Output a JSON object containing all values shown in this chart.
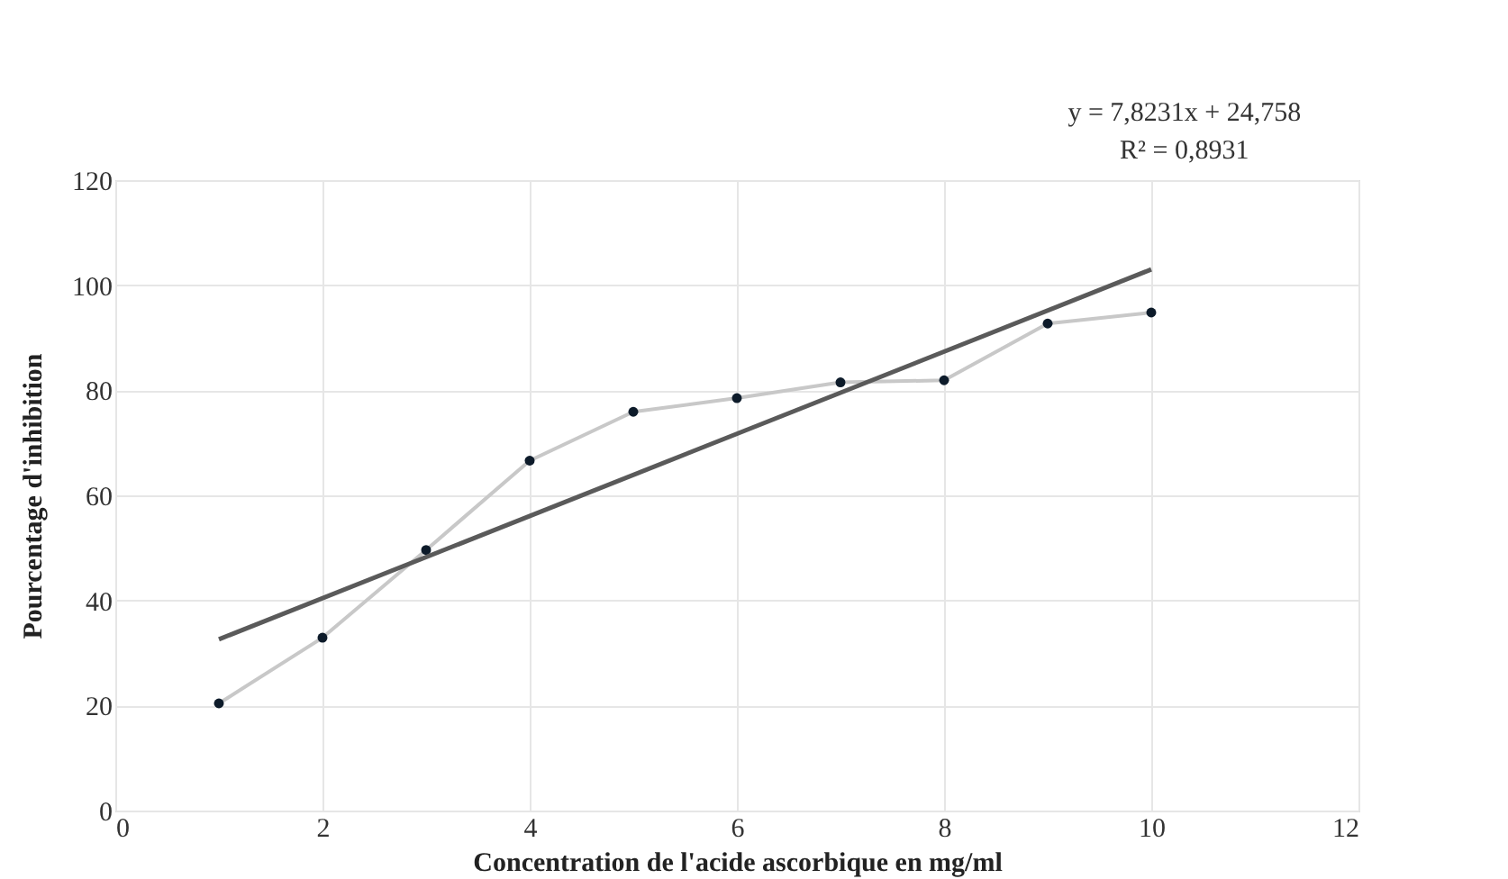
{
  "chart_data": {
    "type": "line",
    "xlabel": "Concentration de l'acide ascorbique en mg/ml",
    "ylabel": "Pourcentage  d'inhibition",
    "x": [
      1,
      2,
      3,
      4,
      5,
      6,
      7,
      8,
      9,
      10
    ],
    "series": [
      {
        "color": "#c8c8c8",
        "values": [
          20.4,
          32.9,
          49.6,
          66.6,
          75.9,
          78.5,
          81.5,
          81.9,
          92.7,
          94.8
        ],
        "marker": "circle"
      },
      {
        "type": "line",
        "color": "#5a5a5a",
        "x": [
          1,
          10
        ],
        "values": [
          32.6,
          103.0
        ],
        "marker": "none"
      }
    ],
    "annotations": [
      {
        "text": "y = 7,8231x + 24,758"
      },
      {
        "text": "R² = 0,8931"
      }
    ],
    "xlim": [
      0,
      12
    ],
    "xticks": [
      0,
      2,
      4,
      6,
      8,
      10,
      12
    ],
    "ylim": [
      0,
      120
    ],
    "yticks": [
      0,
      20,
      40,
      60,
      80,
      100,
      120
    ],
    "grid": true,
    "line_style": "solid"
  }
}
